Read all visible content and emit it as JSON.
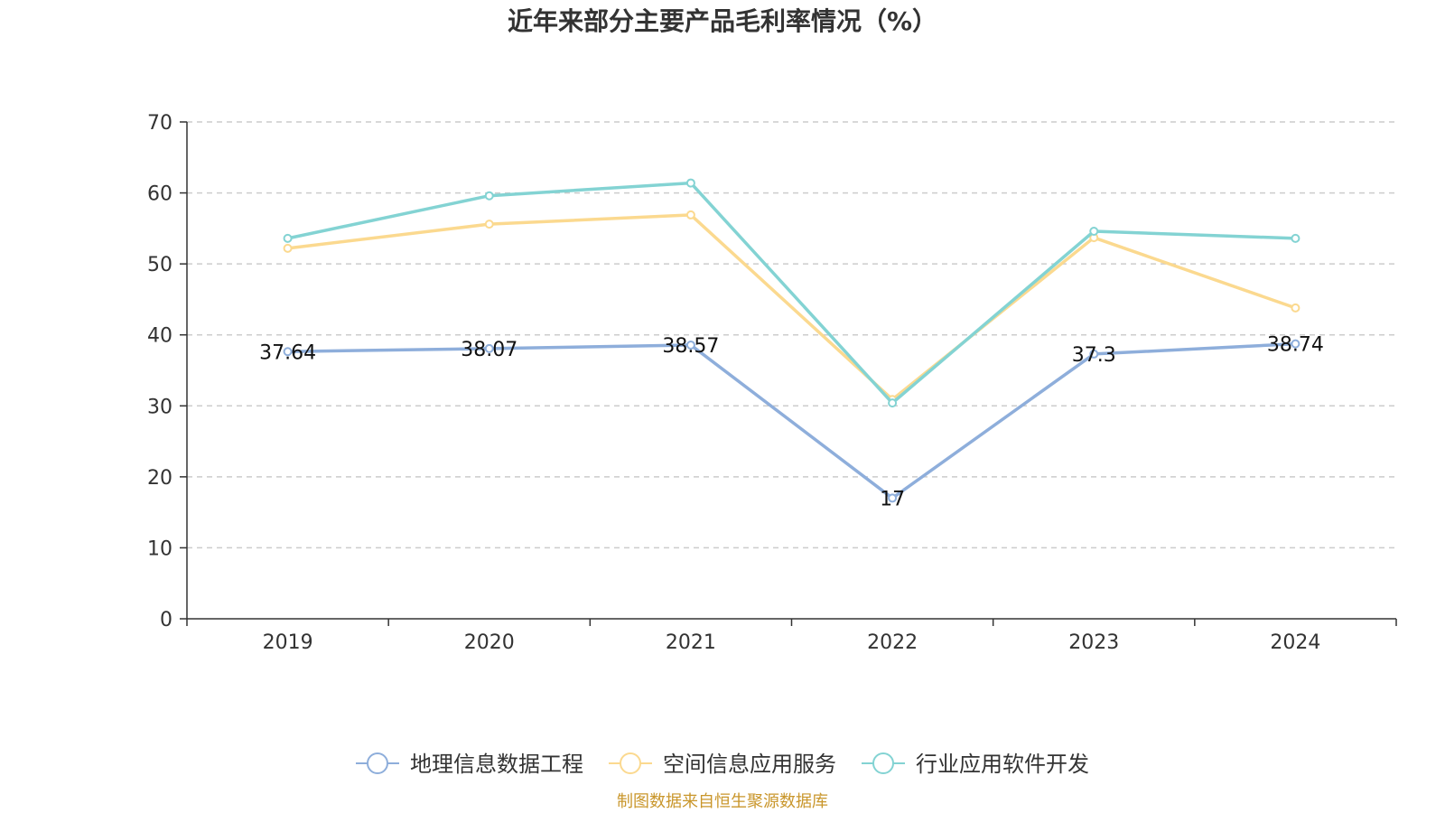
{
  "chart_data": {
    "type": "line",
    "title": "近年来部分主要产品毛利率情况（%）",
    "categories": [
      "2019",
      "2020",
      "2021",
      "2022",
      "2023",
      "2024"
    ],
    "ylim": [
      0,
      70
    ],
    "yticks": [
      0,
      10,
      20,
      30,
      40,
      50,
      60,
      70
    ],
    "grid": true,
    "legend_position": "bottom",
    "series": [
      {
        "name": "地理信息数据工程",
        "color": "#8eaedb",
        "values": [
          37.64,
          38.07,
          38.57,
          17,
          37.3,
          38.74
        ],
        "labels": [
          "37.64",
          "38.07",
          "38.57",
          "17",
          "37.3",
          "38.74"
        ]
      },
      {
        "name": "空间信息应用服务",
        "color": "#fbd98f",
        "values": [
          52.2,
          55.6,
          56.9,
          30.9,
          53.7,
          43.8
        ]
      },
      {
        "name": "行业应用软件开发",
        "color": "#83d3d3",
        "values": [
          53.6,
          59.6,
          61.4,
          30.4,
          54.6,
          53.6
        ]
      }
    ],
    "source": "制图数据来自恒生聚源数据库"
  }
}
